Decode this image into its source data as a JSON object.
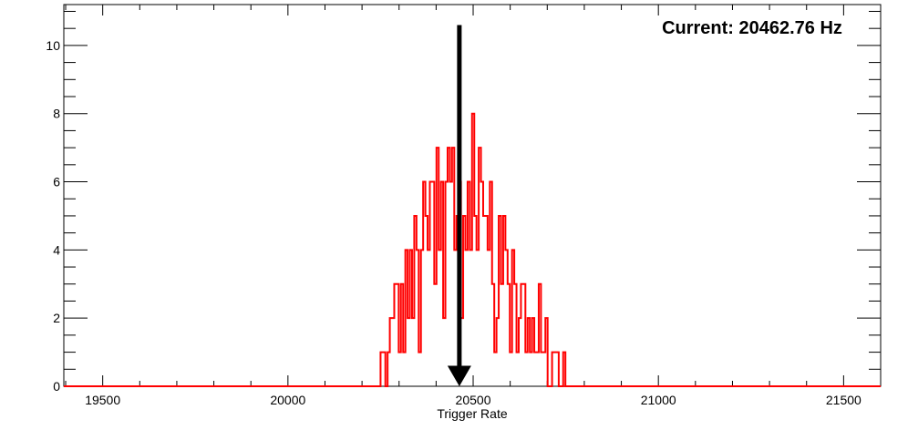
{
  "chart_data": {
    "type": "histogram",
    "title": "",
    "xlabel": "Trigger Rate",
    "ylabel": "",
    "xlim": [
      19395,
      21600
    ],
    "ylim": [
      0,
      11.2
    ],
    "x_ticks": [
      19500,
      20000,
      20500,
      21000,
      21500
    ],
    "x_tick_labels": [
      "19500",
      "20000",
      "20500",
      "21000",
      "21500"
    ],
    "y_ticks": [
      0,
      2,
      4,
      6,
      8,
      10
    ],
    "y_tick_labels": [
      "0",
      "2",
      "4",
      "6",
      "8",
      "10"
    ],
    "series": [
      {
        "name": "Trigger Rate",
        "color": "#ff0000",
        "bin_edges": [
          20250,
          20263,
          20269,
          20275,
          20281,
          20287,
          20293,
          20299,
          20305,
          20311,
          20317,
          20323,
          20329,
          20335,
          20341,
          20347,
          20353,
          20359,
          20365,
          20371,
          20377,
          20383,
          20389,
          20395,
          20401,
          20407,
          20413,
          20419,
          20425,
          20431,
          20437,
          20443,
          20449,
          20455,
          20461,
          20467,
          20473,
          20479,
          20485,
          20491,
          20497,
          20503,
          20509,
          20515,
          20521,
          20527,
          20533,
          20539,
          20545,
          20551,
          20557,
          20563,
          20569,
          20575,
          20581,
          20587,
          20593,
          20599,
          20605,
          20611,
          20617,
          20623,
          20629,
          20635,
          20641,
          20647,
          20653,
          20659,
          20665,
          20671,
          20677,
          20683,
          20689,
          20695,
          20701,
          20707,
          20713,
          20719,
          20725,
          20731,
          20737,
          20743,
          20749,
          20755,
          20761
        ],
        "counts": [
          1,
          0,
          1,
          2,
          2,
          3,
          3,
          1,
          3,
          1,
          4,
          2,
          4,
          2,
          5,
          4,
          1,
          4,
          6,
          5,
          4,
          6,
          6,
          3,
          7,
          4,
          6,
          2,
          6,
          7,
          6,
          7,
          4,
          5,
          6,
          2,
          5,
          4,
          6,
          4,
          8,
          5,
          4,
          7,
          6,
          5,
          5,
          4,
          6,
          3,
          1,
          2,
          5,
          3,
          5,
          4,
          3,
          1,
          4,
          3,
          1,
          2,
          3,
          3,
          1,
          2,
          1,
          2,
          1,
          1,
          3,
          1,
          1,
          2,
          0,
          0,
          1,
          1,
          1,
          0,
          0,
          1,
          0,
          0
        ]
      }
    ],
    "marker": {
      "x": 20462.76,
      "label": "Current: 20462.76 Hz",
      "color": "#000000"
    },
    "legend": "none",
    "grid": false
  }
}
